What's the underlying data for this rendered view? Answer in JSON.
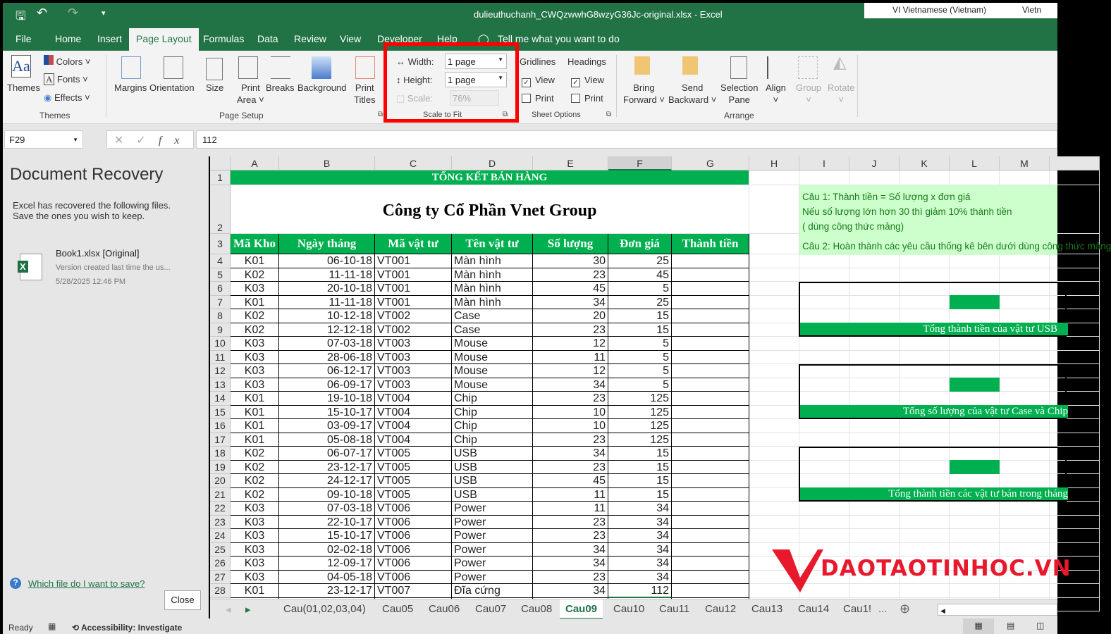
{
  "titlebar": {
    "title": "dulieuthuchanh_CWQzwwhG8wzyG36Jc-original.xlsx  -  Excel",
    "language": "VI  Vietnamese (Vietnam)",
    "lang_short": "Vietn"
  },
  "tabs": [
    "File",
    "Home",
    "Insert",
    "Page Layout",
    "Formulas",
    "Data",
    "Review",
    "View",
    "Developer",
    "Help"
  ],
  "tell_me": "Tell me what you want to do",
  "ribbon": {
    "themes": {
      "themes": "Themes",
      "colors": "Colors",
      "fonts": "Fonts",
      "effects": "Effects",
      "group": "Themes"
    },
    "page_setup": {
      "margins": "Margins",
      "orientation": "Orientation",
      "size": "Size",
      "print_area_1": "Print",
      "print_area_2": "Area",
      "breaks": "Breaks",
      "background": "Background",
      "print_titles_1": "Print",
      "print_titles_2": "Titles",
      "group": "Page Setup"
    },
    "scale_to_fit": {
      "width_label": "Width:",
      "width_value": "1 page",
      "height_label": "Height:",
      "height_value": "1 page",
      "scale_label": "Scale:",
      "scale_value": "76%",
      "group": "Scale to Fit"
    },
    "sheet_options": {
      "gridlines": "Gridlines",
      "headings": "Headings",
      "view": "View",
      "print": "Print",
      "gridlines_view": true,
      "gridlines_print": false,
      "headings_view": true,
      "headings_print": false,
      "group": "Sheet Options"
    },
    "arrange": {
      "bring_1": "Bring",
      "bring_2": "Forward",
      "send_1": "Send",
      "send_2": "Backward",
      "selection_1": "Selection",
      "selection_2": "Pane",
      "align": "Align",
      "group_btn": "Group",
      "rotate": "Rotate",
      "group": "Arrange"
    },
    "highlight_color": "#ff0000"
  },
  "formula_bar": {
    "name_box": "F29",
    "formula": "112"
  },
  "recovery": {
    "title": "Document Recovery",
    "desc_1": "Excel has recovered the following files.",
    "desc_2": "Save the ones you wish to keep.",
    "file_name": "Book1.xlsx  [Original]",
    "file_desc": "Version created last time the us...",
    "file_date": "5/28/2025 12:46 PM",
    "help_link": "Which file do I want to save?",
    "close": "Close"
  },
  "sheet": {
    "columns": [
      "A",
      "B",
      "C",
      "D",
      "E",
      "F",
      "G",
      "H",
      "I",
      "J",
      "K",
      "L",
      "M"
    ],
    "title": "TỔNG KẾT BÁN HÀNG",
    "company": "Công ty Cổ Phần Vnet Group",
    "headers": [
      "Mã Kho",
      "Ngày tháng",
      "Mã vật tư",
      "Tên vật tư",
      "Số lượng",
      "Đơn giá",
      "Thành tiền"
    ],
    "rows": [
      [
        "K01",
        "06-10-18",
        "VT001",
        "Màn hình",
        "30",
        "25",
        ""
      ],
      [
        "K02",
        "11-11-18",
        "VT001",
        "Màn hình",
        "23",
        "45",
        ""
      ],
      [
        "K03",
        "20-10-18",
        "VT001",
        "Màn hình",
        "45",
        "5",
        ""
      ],
      [
        "K01",
        "11-11-18",
        "VT001",
        "Màn hình",
        "34",
        "25",
        ""
      ],
      [
        "K02",
        "10-12-18",
        "VT002",
        "Case",
        "20",
        "15",
        ""
      ],
      [
        "K02",
        "12-12-18",
        "VT002",
        "Case",
        "23",
        "15",
        ""
      ],
      [
        "K03",
        "07-03-18",
        "VT003",
        "Mouse",
        "12",
        "5",
        ""
      ],
      [
        "K03",
        "28-06-18",
        "VT003",
        "Mouse",
        "11",
        "5",
        ""
      ],
      [
        "K03",
        "06-12-17",
        "VT003",
        "Mouse",
        "12",
        "5",
        ""
      ],
      [
        "K03",
        "06-09-17",
        "VT003",
        "Mouse",
        "34",
        "5",
        ""
      ],
      [
        "K01",
        "19-10-18",
        "VT004",
        "Chip",
        "23",
        "125",
        ""
      ],
      [
        "K01",
        "15-10-17",
        "VT004",
        "Chip",
        "10",
        "125",
        ""
      ],
      [
        "K01",
        "03-09-17",
        "VT004",
        "Chip",
        "10",
        "125",
        ""
      ],
      [
        "K01",
        "05-08-18",
        "VT004",
        "Chip",
        "23",
        "125",
        ""
      ],
      [
        "K02",
        "06-07-17",
        "VT005",
        "USB",
        "34",
        "15",
        ""
      ],
      [
        "K02",
        "23-12-17",
        "VT005",
        "USB",
        "23",
        "15",
        ""
      ],
      [
        "K02",
        "24-12-17",
        "VT005",
        "USB",
        "45",
        "15",
        ""
      ],
      [
        "K02",
        "09-10-18",
        "VT005",
        "USB",
        "11",
        "15",
        ""
      ],
      [
        "K03",
        "07-03-18",
        "VT006",
        "Power",
        "11",
        "34",
        ""
      ],
      [
        "K03",
        "22-10-17",
        "VT006",
        "Power",
        "23",
        "34",
        ""
      ],
      [
        "K03",
        "15-10-17",
        "VT006",
        "Power",
        "23",
        "34",
        ""
      ],
      [
        "K03",
        "02-02-18",
        "VT006",
        "Power",
        "34",
        "34",
        ""
      ],
      [
        "K03",
        "12-09-17",
        "VT006",
        "Power",
        "34",
        "34",
        ""
      ],
      [
        "K03",
        "04-05-18",
        "VT006",
        "Power",
        "23",
        "34",
        ""
      ],
      [
        "K01",
        "23-12-17",
        "VT007",
        "Đĩa cứng",
        "34",
        "112",
        ""
      ]
    ],
    "notes": [
      "Câu 1: Thành tiền = Số lượng x đơn giá",
      "Nếu số lượng lớn hơn 30 thì giảm 10% thành tiền",
      "( dùng công thức mảng)",
      "Câu 2: Hoàn thành các yêu cầu thống kê bên dưới dùng công thức mảng"
    ],
    "boxes": [
      "Tổng thành tiền của vật tư USB",
      "Tổng số lượng của vật tư Case và Chip",
      "Tổng thành tiền các vật tư bán trong tháng"
    ],
    "accent": "#00b050"
  },
  "watermark": "DAOTAOTINHOC.VN",
  "sheet_tabs": [
    "Cau(01,02,03,04)",
    "Cau05",
    "Cau06",
    "Cau07",
    "Cau08",
    "Cau09",
    "Cau10",
    "Cau11",
    "Cau12",
    "Cau13",
    "Cau14",
    "Cau1!"
  ],
  "active_sheet": "Cau09",
  "status": {
    "ready": "Ready",
    "accessibility": "Accessibility: Investigate"
  }
}
